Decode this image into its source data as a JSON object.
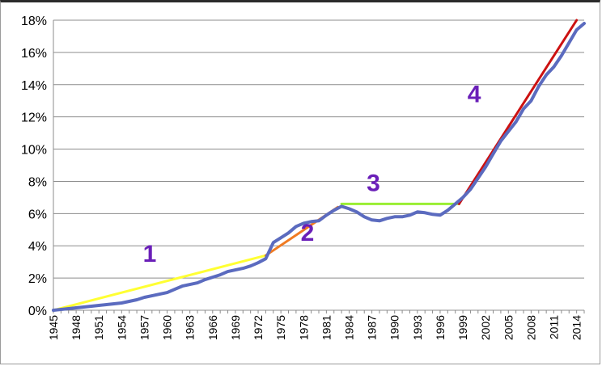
{
  "chart_data": {
    "type": "line",
    "title": "",
    "xlabel": "",
    "ylabel": "",
    "xlim": [
      1945,
      2015
    ],
    "ylim": [
      0,
      18
    ],
    "y_tick_values": [
      0,
      2,
      4,
      6,
      8,
      10,
      12,
      14,
      16,
      18
    ],
    "y_tick_labels": [
      "0%",
      "2%",
      "4%",
      "6%",
      "8%",
      "10%",
      "12%",
      "14%",
      "16%",
      "18%"
    ],
    "x_tick_labels": [
      "1945",
      "1948",
      "1951",
      "1954",
      "1957",
      "1960",
      "1963",
      "1966",
      "1969",
      "1972",
      "1975",
      "1978",
      "1981",
      "1984",
      "1987",
      "1990",
      "1993",
      "1996",
      "1999",
      "2002",
      "2005",
      "2008",
      "2011",
      "2014"
    ],
    "grid": "horizontal",
    "legend": "none",
    "series": [
      {
        "color": "#5b6bbf",
        "x": [
          1945,
          1946,
          1947,
          1948,
          1949,
          1950,
          1951,
          1952,
          1953,
          1954,
          1955,
          1956,
          1957,
          1958,
          1959,
          1960,
          1961,
          1962,
          1963,
          1964,
          1965,
          1966,
          1967,
          1968,
          1969,
          1970,
          1971,
          1972,
          1973,
          1974,
          1975,
          1976,
          1977,
          1978,
          1979,
          1980,
          1981,
          1982,
          1983,
          1984,
          1985,
          1986,
          1987,
          1988,
          1989,
          1990,
          1991,
          1992,
          1993,
          1994,
          1995,
          1996,
          1997,
          1998,
          1999,
          2000,
          2001,
          2002,
          2003,
          2004,
          2005,
          2006,
          2007,
          2008,
          2009,
          2010,
          2011,
          2012,
          2013,
          2014,
          2015
        ],
        "y": [
          0.0,
          0.05,
          0.1,
          0.15,
          0.2,
          0.25,
          0.3,
          0.35,
          0.4,
          0.45,
          0.55,
          0.65,
          0.8,
          0.9,
          1.0,
          1.1,
          1.3,
          1.5,
          1.6,
          1.7,
          1.9,
          2.05,
          2.2,
          2.4,
          2.5,
          2.6,
          2.75,
          2.95,
          3.2,
          4.2,
          4.5,
          4.8,
          5.2,
          5.4,
          5.5,
          5.55,
          5.9,
          6.2,
          6.45,
          6.3,
          6.1,
          5.8,
          5.6,
          5.55,
          5.7,
          5.8,
          5.8,
          5.9,
          6.1,
          6.05,
          5.95,
          5.9,
          6.2,
          6.6,
          7.0,
          7.5,
          8.2,
          8.9,
          9.7,
          10.5,
          11.1,
          11.7,
          12.5,
          13.0,
          13.9,
          14.6,
          15.1,
          15.8,
          16.6,
          17.4,
          17.8
        ]
      }
    ],
    "trend_lines": [
      {
        "label": "1",
        "color": "#ffff33",
        "label_color": "#6a1fb8",
        "x": [
          1945,
          1973
        ],
        "y": [
          0.0,
          3.4
        ],
        "label_x": 1957.7,
        "label_y": 3.0
      },
      {
        "label": "2",
        "color": "#f07b22",
        "label_color": "#6a1fb8",
        "x": [
          1973,
          1982.5
        ],
        "y": [
          3.4,
          6.4
        ],
        "label_x": 1978.5,
        "label_y": 4.3
      },
      {
        "label": "3",
        "color": "#99ee33",
        "label_color": "#6a1fb8",
        "x": [
          1983,
          1998.5
        ],
        "y": [
          6.6,
          6.6
        ],
        "label_x": 1987.2,
        "label_y": 7.4
      },
      {
        "label": "4",
        "color": "#cc1111",
        "label_color": "#6a1fb8",
        "x": [
          1998.5,
          2014
        ],
        "y": [
          6.6,
          18.0
        ],
        "label_x": 2000.5,
        "label_y": 12.9
      }
    ]
  }
}
